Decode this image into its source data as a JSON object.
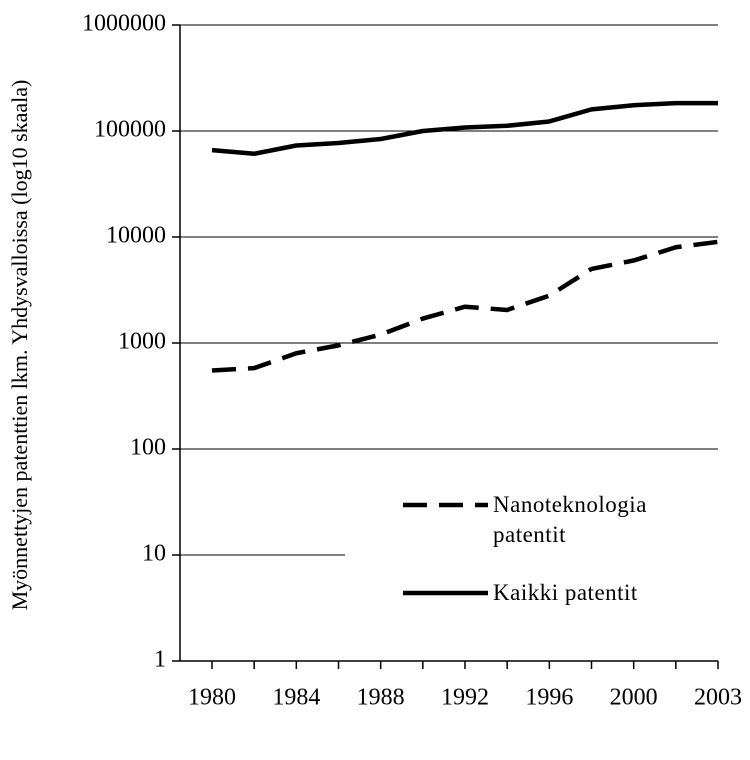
{
  "chart_data": {
    "type": "line",
    "y_label": "Myönnettyjen patenttien lkm. Yhdysvalloissa (log10 skaala)",
    "categories": [
      "1980",
      null,
      "1984",
      null,
      "1988",
      null,
      "1992",
      null,
      "1996",
      null,
      "2000",
      null,
      "2003"
    ],
    "series": [
      {
        "name": "Nanoteknologia patentit",
        "color": "#000000",
        "dash": true,
        "values": [
          550,
          580,
          800,
          950,
          1200,
          1700,
          2200,
          2050,
          2800,
          5000,
          6000,
          8000,
          9000
        ]
      },
      {
        "name": "Kaikki patentit",
        "color": "#000000",
        "dash": false,
        "values": [
          66000,
          61000,
          73000,
          77000,
          84000,
          100000,
          108000,
          112000,
          123000,
          160000,
          175000,
          183000,
          183000
        ]
      }
    ],
    "ylim": [
      1,
      1000000
    ],
    "yticks": [
      1,
      10,
      100,
      1000,
      10000,
      100000,
      1000000
    ],
    "log_y": true,
    "grid": true,
    "legend": "lower right"
  }
}
